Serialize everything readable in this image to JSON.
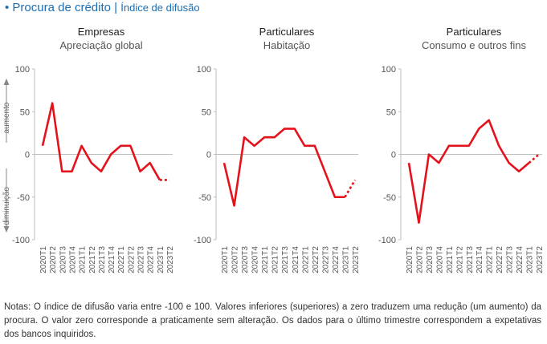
{
  "header": {
    "title": "Procura de crédito",
    "separator": "|",
    "subtitle": "Índice de difusão"
  },
  "axis_side_labels": {
    "up": "aumento",
    "down": "diminuição"
  },
  "chart_data": [
    {
      "type": "line",
      "title": "Empresas",
      "subtitle": "Apreciação global",
      "ylim": [
        -100,
        100
      ],
      "yticks": [
        100,
        50,
        0,
        -50,
        -100
      ],
      "x": [
        "2020T1",
        "2020T2",
        "2020T3",
        "2020T4",
        "2021T1",
        "2021T2",
        "2021T3",
        "2021T4",
        "2022T1",
        "2022T2",
        "2022T3",
        "2022T4",
        "2023T1",
        "2023T2"
      ],
      "series": [
        {
          "values": [
            10,
            60,
            -20,
            -20,
            10,
            -10,
            -20,
            0,
            10,
            10,
            -20,
            -10,
            -30,
            -30
          ],
          "last_dashed": true
        }
      ],
      "color": "#e3121b"
    },
    {
      "type": "line",
      "title": "Particulares",
      "subtitle": "Habitação",
      "ylim": [
        -100,
        100
      ],
      "yticks": [
        100,
        50,
        0,
        -50,
        -100
      ],
      "x": [
        "2020T1",
        "2020T2",
        "2020T3",
        "2020T4",
        "2021T1",
        "2021T2",
        "2021T3",
        "2021T4",
        "2022T1",
        "2022T2",
        "2022T3",
        "2022T4",
        "2023T1",
        "2023T2"
      ],
      "series": [
        {
          "values": [
            -10,
            -60,
            20,
            10,
            20,
            20,
            30,
            30,
            10,
            10,
            -20,
            -50,
            -50,
            -30
          ],
          "last_dashed": true
        }
      ],
      "color": "#e3121b"
    },
    {
      "type": "line",
      "title": "Particulares",
      "subtitle": "Consumo e outros fins",
      "ylim": [
        -100,
        100
      ],
      "yticks": [
        100,
        50,
        0,
        -50,
        -100
      ],
      "x": [
        "2020T1",
        "2020T2",
        "2020T3",
        "2020T4",
        "2021T1",
        "2021T2",
        "2021T3",
        "2021T4",
        "2022T1",
        "2022T2",
        "2022T3",
        "2022T4",
        "2023T1",
        "2023T2"
      ],
      "series": [
        {
          "values": [
            -10,
            -80,
            0,
            -10,
            10,
            10,
            10,
            30,
            40,
            10,
            -10,
            -20,
            -10,
            0
          ],
          "last_dashed": true
        }
      ],
      "color": "#e3121b"
    }
  ],
  "note": "Notas: O índice de difusão varia entre -100 e 100. Valores inferiores (superiores) a zero traduzem uma redução (um aumento) da procura. O valor zero corresponde a praticamente sem alteração. Os dados para o último trimestre correspondem a expetativas dos bancos inquiridos."
}
